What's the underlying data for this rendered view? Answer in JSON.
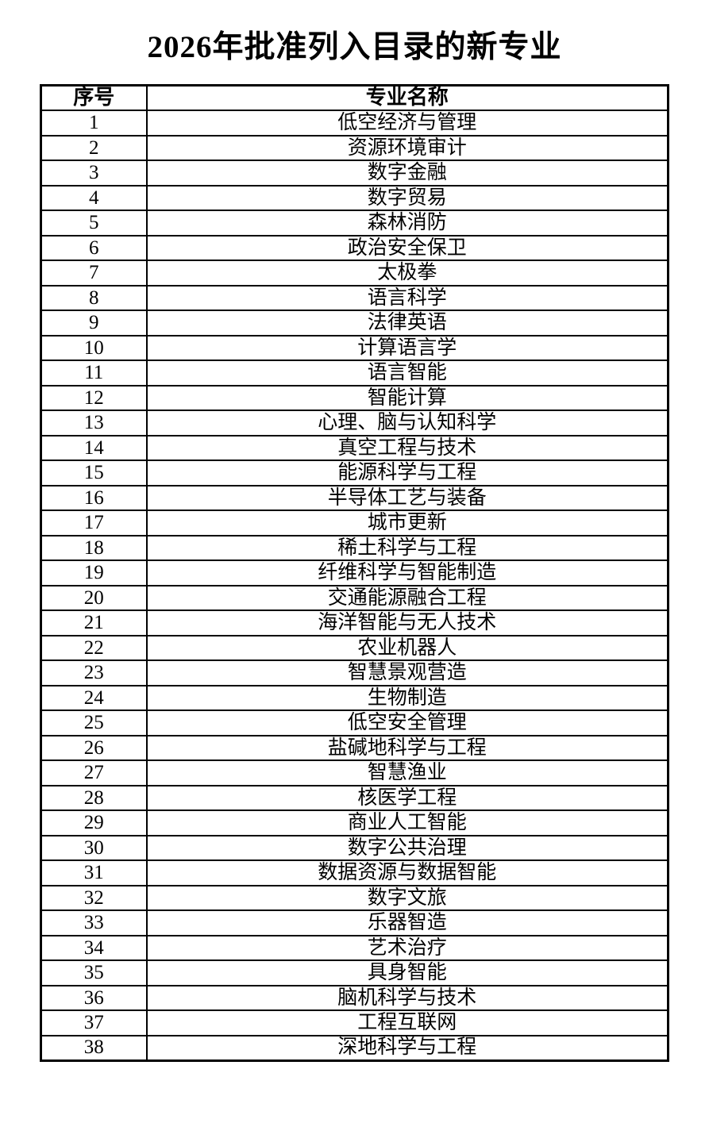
{
  "page_title": "2026年批准列入目录的新专业",
  "table": {
    "headers": {
      "index": "序号",
      "major": "专业名称"
    },
    "rows": [
      {
        "num": "1",
        "name": "低空经济与管理"
      },
      {
        "num": "2",
        "name": "资源环境审计"
      },
      {
        "num": "3",
        "name": "数字金融"
      },
      {
        "num": "4",
        "name": "数字贸易"
      },
      {
        "num": "5",
        "name": "森林消防"
      },
      {
        "num": "6",
        "name": "政治安全保卫"
      },
      {
        "num": "7",
        "name": "太极拳"
      },
      {
        "num": "8",
        "name": "语言科学"
      },
      {
        "num": "9",
        "name": "法律英语"
      },
      {
        "num": "10",
        "name": "计算语言学"
      },
      {
        "num": "11",
        "name": "语言智能"
      },
      {
        "num": "12",
        "name": "智能计算"
      },
      {
        "num": "13",
        "name": "心理、脑与认知科学"
      },
      {
        "num": "14",
        "name": "真空工程与技术"
      },
      {
        "num": "15",
        "name": "能源科学与工程"
      },
      {
        "num": "16",
        "name": "半导体工艺与装备"
      },
      {
        "num": "17",
        "name": "城市更新"
      },
      {
        "num": "18",
        "name": "稀土科学与工程"
      },
      {
        "num": "19",
        "name": "纤维科学与智能制造"
      },
      {
        "num": "20",
        "name": "交通能源融合工程"
      },
      {
        "num": "21",
        "name": "海洋智能与无人技术"
      },
      {
        "num": "22",
        "name": "农业机器人"
      },
      {
        "num": "23",
        "name": "智慧景观营造"
      },
      {
        "num": "24",
        "name": "生物制造"
      },
      {
        "num": "25",
        "name": "低空安全管理"
      },
      {
        "num": "26",
        "name": "盐碱地科学与工程"
      },
      {
        "num": "27",
        "name": "智慧渔业"
      },
      {
        "num": "28",
        "name": "核医学工程"
      },
      {
        "num": "29",
        "name": "商业人工智能"
      },
      {
        "num": "30",
        "name": "数字公共治理"
      },
      {
        "num": "31",
        "name": "数据资源与数据智能"
      },
      {
        "num": "32",
        "name": "数字文旅"
      },
      {
        "num": "33",
        "name": "乐器智造"
      },
      {
        "num": "34",
        "name": "艺术治疗"
      },
      {
        "num": "35",
        "name": "具身智能"
      },
      {
        "num": "36",
        "name": "脑机科学与技术"
      },
      {
        "num": "37",
        "name": "工程互联网"
      },
      {
        "num": "38",
        "name": "深地科学与工程"
      }
    ]
  },
  "colors": {
    "text": "#000000",
    "border": "#000000",
    "background": "#ffffff"
  }
}
